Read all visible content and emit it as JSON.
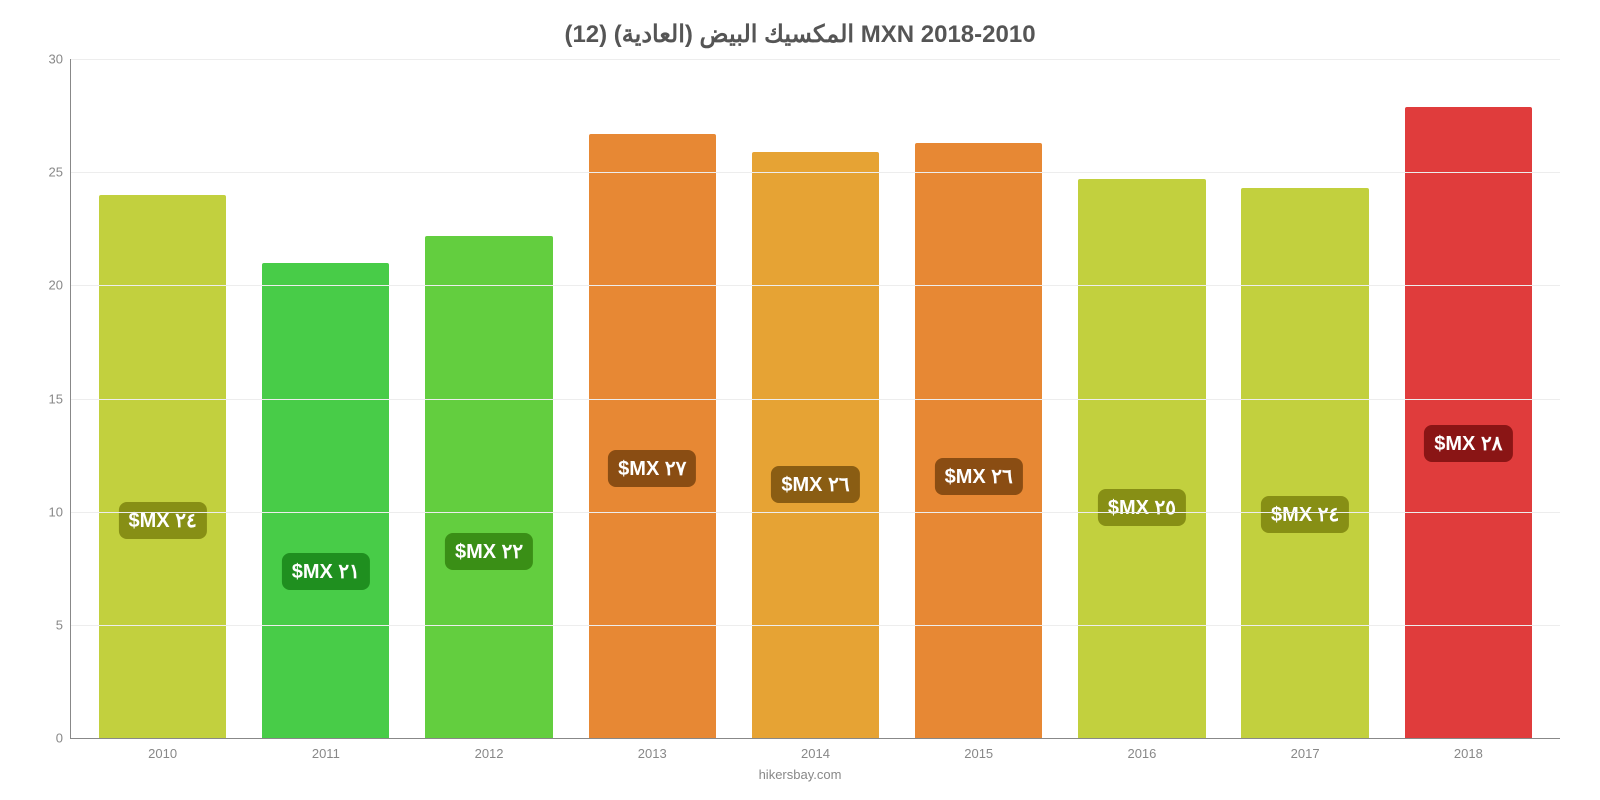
{
  "chart": {
    "type": "bar",
    "title": "المكسيك البيض (العادية) (12) MXN 2018-2010",
    "title_fontsize": 24,
    "title_color": "#555555",
    "background_color": "#ffffff",
    "axis_color": "#888888",
    "grid_color": "#ededed",
    "tick_label_color": "#888888",
    "tick_label_fontsize": 13,
    "bar_label_fontsize": 20,
    "bar_label_text_color": "#ffffff",
    "y_axis": {
      "min": 0,
      "max": 30,
      "tick_step": 5,
      "ticks": [
        0,
        5,
        10,
        15,
        20,
        25,
        30
      ]
    },
    "bar_width_ratio": 0.78,
    "bars": [
      {
        "category": "2010",
        "value": 24.0,
        "label": "٢٤ MX$",
        "bar_color": "#c2d03e",
        "label_bg": "#878f15"
      },
      {
        "category": "2011",
        "value": 21.0,
        "label": "٢١ MX$",
        "bar_color": "#48cc48",
        "label_bg": "#1f8f1f"
      },
      {
        "category": "2012",
        "value": 22.2,
        "label": "٢٢ MX$",
        "bar_color": "#63ce3f",
        "label_bg": "#3a8f16"
      },
      {
        "category": "2013",
        "value": 26.7,
        "label": "٢٧ MX$",
        "bar_color": "#e78834",
        "label_bg": "#8a4d13"
      },
      {
        "category": "2014",
        "value": 25.9,
        "label": "٢٦ MX$",
        "bar_color": "#e6a334",
        "label_bg": "#8a5d13"
      },
      {
        "category": "2015",
        "value": 26.3,
        "label": "٢٦ MX$",
        "bar_color": "#e78834",
        "label_bg": "#8a4d13"
      },
      {
        "category": "2016",
        "value": 24.7,
        "label": "٢٥ MX$",
        "bar_color": "#c2d03e",
        "label_bg": "#878f15"
      },
      {
        "category": "2017",
        "value": 24.3,
        "label": "٢٤ MX$",
        "bar_color": "#c2d03e",
        "label_bg": "#878f15"
      },
      {
        "category": "2018",
        "value": 27.9,
        "label": "٢٨ MX$",
        "bar_color": "#e03c3c",
        "label_bg": "#8a1515"
      }
    ],
    "attribution": "hikersbay.com"
  }
}
